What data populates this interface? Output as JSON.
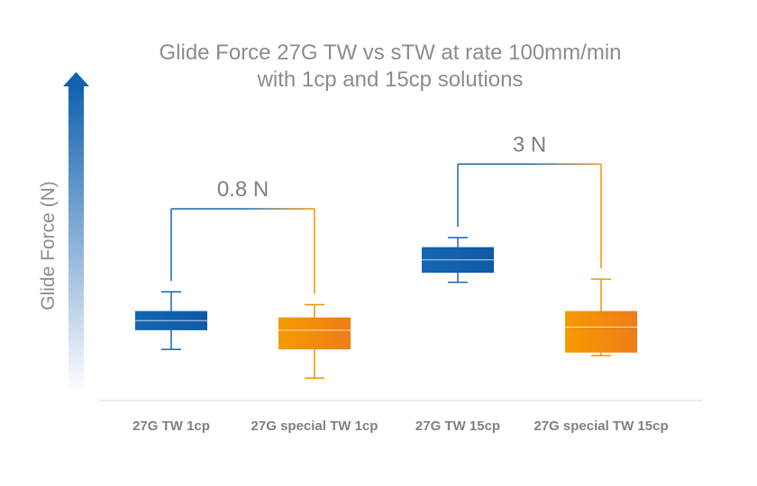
{
  "chart_data": {
    "type": "box",
    "title": "Glide Force 27G TW vs sTW at rate 100mm/min",
    "subtitle": "with 1cp and 15cp solutions",
    "ylabel": "Glide Force (N)",
    "xlabel": "",
    "ylim": [
      0,
      10
    ],
    "grid": false,
    "categories": [
      "27G TW 1cp",
      "27G special TW 1cp",
      "27G TW 15cp",
      "27G special TW 15cp"
    ],
    "boxes": [
      {
        "category": "27G TW 1cp",
        "min": 1.6,
        "q1": 2.2,
        "median": 2.5,
        "q3": 2.8,
        "max": 3.4,
        "color": "#1565b3"
      },
      {
        "category": "27G special TW 1cp",
        "min": 0.7,
        "q1": 1.6,
        "median": 2.2,
        "q3": 2.6,
        "max": 3.0,
        "color": "#f39200"
      },
      {
        "category": "27G TW 15cp",
        "min": 3.7,
        "q1": 4.0,
        "median": 4.4,
        "q3": 4.8,
        "max": 5.1,
        "color": "#1565b3"
      },
      {
        "category": "27G special TW 15cp",
        "min": 1.4,
        "q1": 1.5,
        "median": 2.3,
        "q3": 2.8,
        "max": 3.8,
        "color": "#f39200"
      }
    ],
    "annotations": [
      {
        "label": "0.8 N",
        "from": 0,
        "to": 1,
        "level": 6.0
      },
      {
        "label": "3 N",
        "from": 2,
        "to": 3,
        "level": 7.4
      }
    ]
  }
}
